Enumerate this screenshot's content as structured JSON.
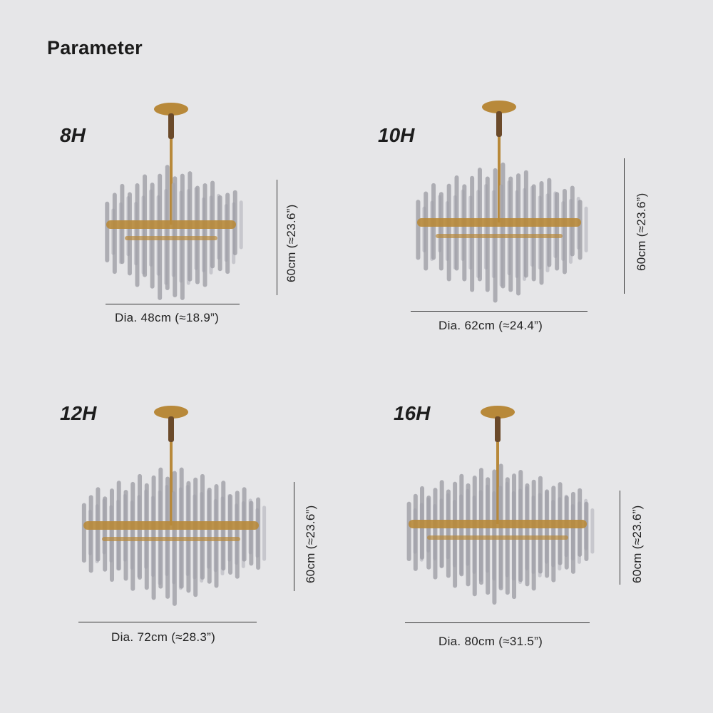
{
  "title": "Parameter",
  "accent_colors": {
    "gold": "#b8893a",
    "crystal": "#9a9aa2",
    "background": "#e6e6e8"
  },
  "variants": [
    {
      "label": "8H",
      "diameter": "Dia. 48cm (≈18.9”)",
      "height": "60cm (≈23.6”)"
    },
    {
      "label": "10H",
      "diameter": "Dia. 62cm (≈24.4”)",
      "height": "60cm (≈23.6”)"
    },
    {
      "label": "12H",
      "diameter": "Dia. 72cm (≈28.3”)",
      "height": "60cm (≈23.6”)"
    },
    {
      "label": "16H",
      "diameter": "Dia. 80cm (≈31.5”)",
      "height": "60cm (≈23.6”)"
    }
  ]
}
